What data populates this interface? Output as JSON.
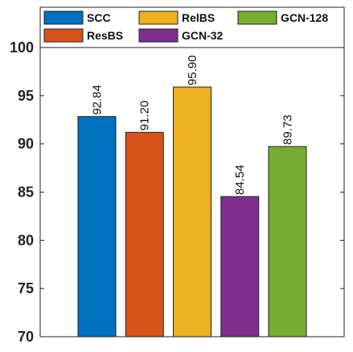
{
  "chart_data": {
    "type": "bar",
    "title": "",
    "xlabel": "",
    "ylabel": "",
    "ylim": [
      70,
      100
    ],
    "yticks": [
      70,
      75,
      80,
      85,
      90,
      95,
      100
    ],
    "grid": false,
    "legend_position": "top",
    "series": [
      {
        "name": "SCC",
        "value": 92.84,
        "label": "92.84",
        "color": "#0070C0"
      },
      {
        "name": "ResBS",
        "value": 91.2,
        "label": "91.20",
        "color": "#D95319"
      },
      {
        "name": "RelBS",
        "value": 95.9,
        "label": "95.90",
        "color": "#EDB120"
      },
      {
        "name": "GCN-32",
        "value": 84.54,
        "label": "84.54",
        "color": "#7E2F8E"
      },
      {
        "name": "GCN-128",
        "value": 89.73,
        "label": "89.73",
        "color": "#77AC30"
      }
    ]
  }
}
